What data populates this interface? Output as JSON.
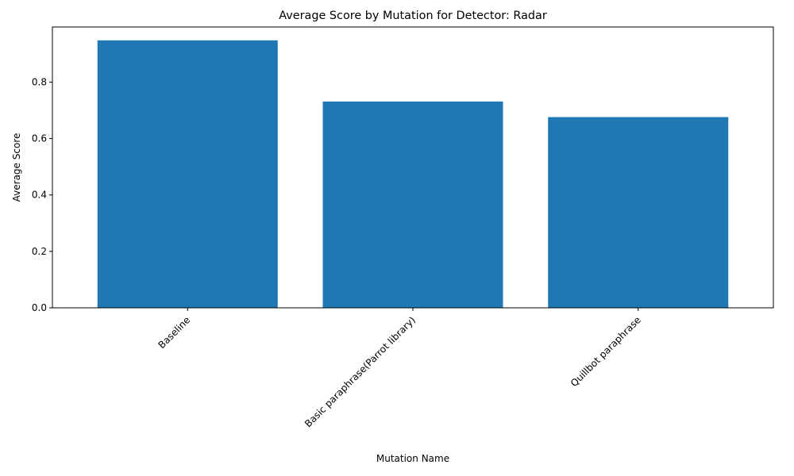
{
  "chart_data": {
    "type": "bar",
    "title": "Average Score by Mutation for Detector: Radar",
    "xlabel": "Mutation Name",
    "ylabel": "Average Score",
    "categories": [
      "Baseline",
      "Basic paraphrase(Parrot library)",
      "Quillbot paraphrase"
    ],
    "values": [
      0.948,
      0.731,
      0.676
    ],
    "ylim": [
      0,
      0.9954
    ],
    "yticks": [
      0.0,
      0.2,
      0.4,
      0.6,
      0.8
    ],
    "ytick_labels": [
      "0.0",
      "0.2",
      "0.4",
      "0.6",
      "0.8"
    ],
    "grid": false,
    "legend": "none",
    "bar_color": "#1f77b4"
  }
}
